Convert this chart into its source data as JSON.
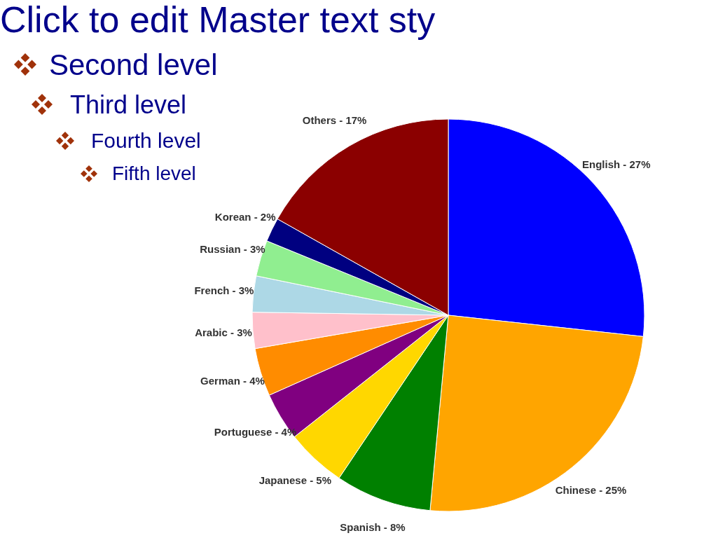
{
  "chart_data": {
    "type": "pie",
    "categories": [
      "English - 27%",
      "Chinese - 25%",
      "Spanish - 8%",
      "Japanese - 5%",
      "Portuguese - 4%",
      "German - 4%",
      "Arabic - 3%",
      "French - 3%",
      "Russian - 3%",
      "Korean - 2%",
      "Others - 17%"
    ],
    "values": [
      27,
      25,
      8,
      5,
      4,
      4,
      3,
      3,
      3,
      2,
      17
    ],
    "colors": [
      "#0000ff",
      "#ffa500",
      "#008000",
      "#ffd700",
      "#800080",
      "#ff8c00",
      "#ffc0cb",
      "#add8e6",
      "#90ee90",
      "#000080",
      "#8b0000"
    ],
    "annotations": [
      "Click to edit Master text sty",
      "Second level",
      "Third level",
      "Fourth level",
      "Fifth level"
    ]
  }
}
